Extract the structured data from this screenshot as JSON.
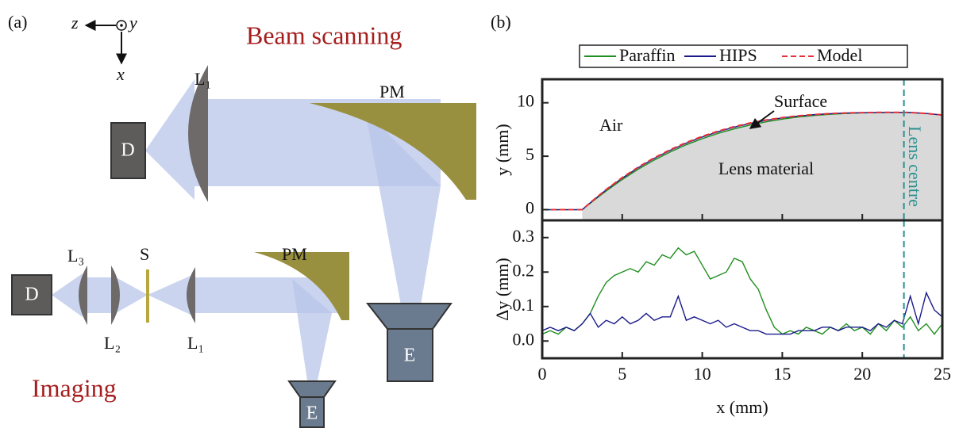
{
  "panel_a": {
    "label": "(a)",
    "axes": {
      "z": "z",
      "y": "y",
      "x": "x"
    },
    "titles": {
      "beam_scanning": "Beam scanning",
      "imaging": "Imaging"
    },
    "beam_scanning": {
      "detector": "D",
      "lens": "L₁",
      "mirror": "PM",
      "emitter": "E"
    },
    "imaging": {
      "detector": "D",
      "lens3": "L₃",
      "lens2": "L₂",
      "slit": "S",
      "lens1": "L₁",
      "mirror": "PM",
      "emitter": "E"
    }
  },
  "panel_b_label": "(b)",
  "chart_data": [
    {
      "type": "line",
      "x": [
        0,
        2.5,
        3,
        4,
        5,
        6,
        7,
        8,
        9,
        10,
        11,
        12,
        13,
        14,
        15,
        16,
        17,
        18,
        19,
        20,
        21,
        22,
        22.6,
        23,
        24,
        25
      ],
      "series": [
        {
          "name": "Paraffin",
          "color": "#1f8f1f",
          "values": [
            0,
            0,
            0.6,
            1.75,
            2.82,
            3.78,
            4.64,
            5.4,
            6.07,
            6.64,
            7.14,
            7.56,
            7.92,
            8.22,
            8.47,
            8.67,
            8.81,
            8.92,
            9.0,
            9.05,
            9.08,
            9.09,
            9.1,
            9.09,
            9.0,
            8.85
          ]
        },
        {
          "name": "HIPS",
          "color": "#1a1a8c",
          "values": [
            0,
            0,
            0.64,
            1.85,
            2.95,
            3.92,
            4.79,
            5.55,
            6.22,
            6.8,
            7.3,
            7.72,
            8.07,
            8.36,
            8.59,
            8.76,
            8.89,
            8.98,
            9.04,
            9.07,
            9.09,
            9.1,
            9.1,
            9.09,
            9.0,
            8.85
          ]
        },
        {
          "name": "Model",
          "color": "#e8303a",
          "dash": true,
          "fill": "#d9d9d9",
          "values": [
            0,
            0,
            0.66,
            1.89,
            3.0,
            3.98,
            4.85,
            5.61,
            6.28,
            6.86,
            7.35,
            7.77,
            8.11,
            8.39,
            8.61,
            8.78,
            8.9,
            8.99,
            9.05,
            9.08,
            9.1,
            9.1,
            9.1,
            9.09,
            9.0,
            8.85
          ]
        }
      ],
      "xlim": [
        0,
        25
      ],
      "xticks": [
        0,
        5,
        10,
        15,
        20,
        25
      ],
      "ylim": [
        -1,
        12.2
      ],
      "yticks": [
        0,
        5,
        10
      ],
      "ylabel": "y (mm)",
      "annotations": {
        "air": "Air",
        "surface": "Surface",
        "lens_material": "Lens material",
        "lens_centre": "Lens centre"
      },
      "lens_centre_x": 22.6,
      "lens_centre_color": "#2a9090"
    },
    {
      "type": "line",
      "x": [
        0,
        0.5,
        1,
        1.5,
        2,
        2.5,
        3,
        3.5,
        4,
        4.5,
        5,
        5.5,
        6,
        6.5,
        7,
        7.5,
        8,
        8.5,
        9,
        9.5,
        10,
        10.5,
        11,
        11.5,
        12,
        12.5,
        13,
        13.5,
        14,
        14.5,
        15,
        15.5,
        16,
        16.5,
        17,
        17.5,
        18,
        18.5,
        19,
        19.5,
        20,
        20.5,
        21,
        21.5,
        22,
        22.5,
        23,
        23.5,
        24,
        24.5,
        25
      ],
      "series": [
        {
          "color": "#1f8f1f",
          "values": [
            0.02,
            0.03,
            0.02,
            0.04,
            0.03,
            0.05,
            0.08,
            0.13,
            0.17,
            0.19,
            0.2,
            0.21,
            0.2,
            0.23,
            0.22,
            0.25,
            0.24,
            0.27,
            0.25,
            0.26,
            0.22,
            0.18,
            0.19,
            0.2,
            0.24,
            0.23,
            0.18,
            0.15,
            0.09,
            0.04,
            0.02,
            0.03,
            0.02,
            0.04,
            0.03,
            0.02,
            0.04,
            0.03,
            0.05,
            0.03,
            0.04,
            0.02,
            0.05,
            0.03,
            0.06,
            0.04,
            0.07,
            0.03,
            0.05,
            0.02,
            0.05
          ]
        },
        {
          "color": "#1a1a8c",
          "values": [
            0.03,
            0.04,
            0.03,
            0.04,
            0.03,
            0.05,
            0.08,
            0.04,
            0.06,
            0.05,
            0.07,
            0.05,
            0.06,
            0.08,
            0.06,
            0.07,
            0.07,
            0.13,
            0.06,
            0.07,
            0.06,
            0.05,
            0.06,
            0.04,
            0.05,
            0.04,
            0.03,
            0.03,
            0.02,
            0.02,
            0.02,
            0.02,
            0.03,
            0.03,
            0.03,
            0.04,
            0.04,
            0.03,
            0.04,
            0.04,
            0.04,
            0.03,
            0.05,
            0.04,
            0.06,
            0.05,
            0.13,
            0.05,
            0.14,
            0.09,
            0.07
          ]
        }
      ],
      "xlim": [
        0,
        25
      ],
      "xticks": [
        0,
        5,
        10,
        15,
        20,
        25
      ],
      "xlabel": "x (mm)",
      "ylim": [
        -0.05,
        0.35
      ],
      "yticks": [
        {
          "value": 0,
          "label": "0.0"
        },
        {
          "value": 0.1,
          "label": "0.1"
        },
        {
          "value": 0.2,
          "label": "0.2"
        },
        {
          "value": 0.3,
          "label": "0.3"
        }
      ],
      "ylabel": "Δy (mm)",
      "lens_centre_x": 22.6,
      "lens_centre_color": "#2a9090"
    }
  ]
}
